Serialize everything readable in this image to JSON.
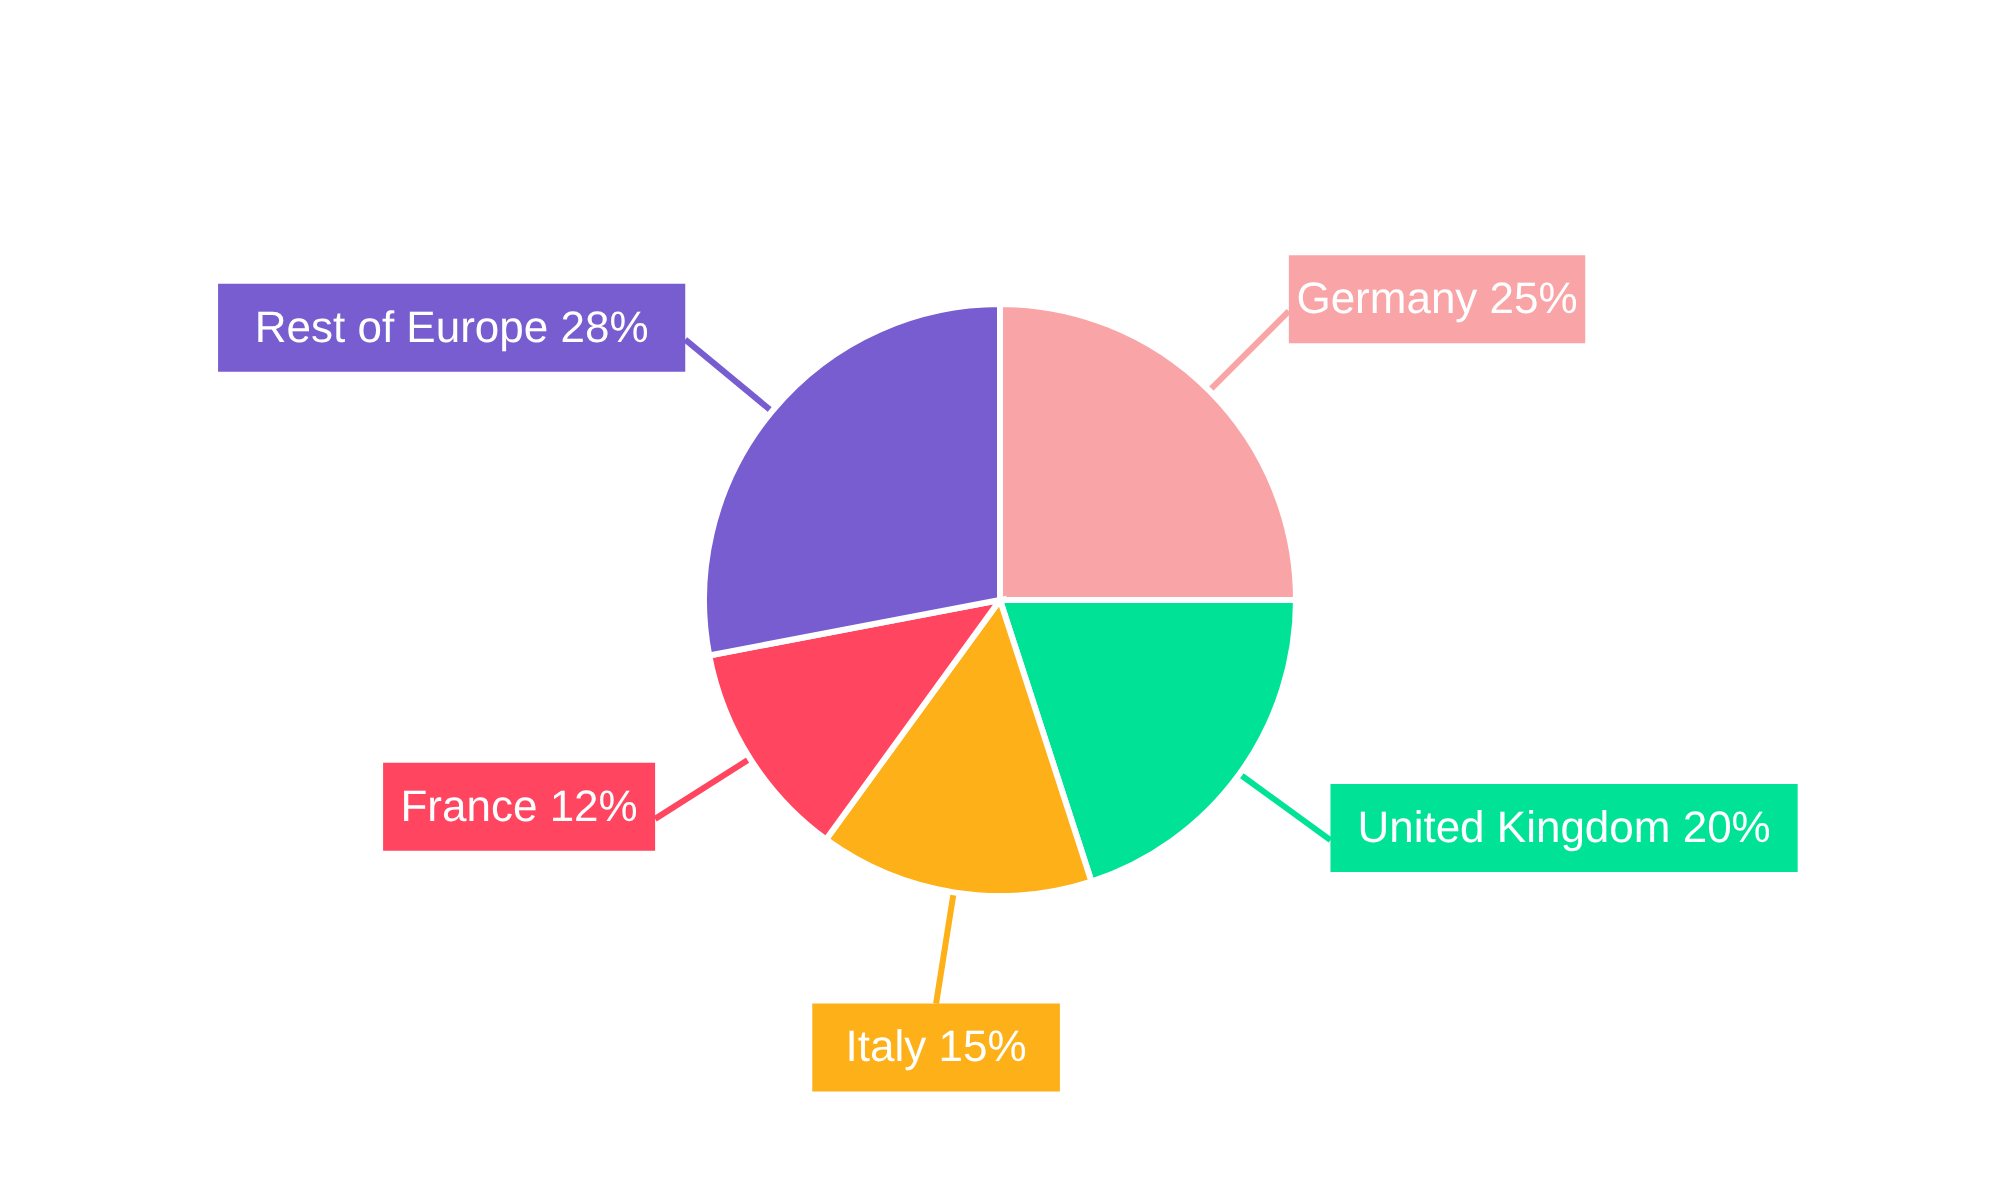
{
  "chart_data": {
    "type": "pie",
    "categories": [
      "Germany",
      "United Kingdom",
      "Italy",
      "France",
      "Rest of Europe"
    ],
    "values": [
      25,
      20,
      15,
      12,
      28
    ],
    "colors": [
      "#f9a5a7",
      "#00e396",
      "#feb019",
      "#ff4560",
      "#775dd0"
    ],
    "value_labels": [
      "25%",
      "20%",
      "15%",
      "12%",
      "28%"
    ]
  }
}
